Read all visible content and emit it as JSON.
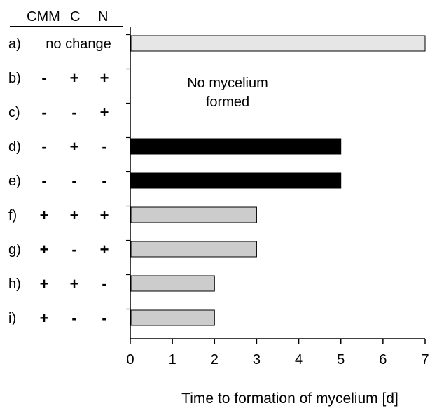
{
  "chart_data": {
    "type": "bar",
    "orientation": "horizontal",
    "xlabel": "Time to formation of mycelium [d]",
    "xlim": [
      0,
      7
    ],
    "xticks": [
      0,
      1,
      2,
      3,
      4,
      5,
      6,
      7
    ],
    "grid": false,
    "legend": "none",
    "column_headers": [
      "CMM",
      "C",
      "N"
    ],
    "rows": [
      {
        "label": "a)",
        "conditions_text": "no change",
        "conditions": [],
        "value": 7,
        "color": "#e6e6e6"
      },
      {
        "label": "b)",
        "conditions": [
          "-",
          "+",
          "+"
        ],
        "value": null,
        "color": null
      },
      {
        "label": "c)",
        "conditions": [
          "-",
          "-",
          "+"
        ],
        "value": null,
        "color": null
      },
      {
        "label": "d)",
        "conditions": [
          "-",
          "+",
          "-"
        ],
        "value": 5,
        "color": "#000000"
      },
      {
        "label": "e)",
        "conditions": [
          "-",
          "-",
          "-"
        ],
        "value": 5,
        "color": "#000000"
      },
      {
        "label": "f)",
        "conditions": [
          "+",
          "+",
          "+"
        ],
        "value": 3,
        "color": "#cccccc"
      },
      {
        "label": "g)",
        "conditions": [
          "+",
          "-",
          "+"
        ],
        "value": 3,
        "color": "#cccccc"
      },
      {
        "label": "h)",
        "conditions": [
          "+",
          "+",
          "-"
        ],
        "value": 2,
        "color": "#cccccc"
      },
      {
        "label": "i)",
        "conditions": [
          "+",
          "-",
          "-"
        ],
        "value": 2,
        "color": "#cccccc"
      }
    ],
    "annotation": {
      "line1": "No mycelium",
      "line2": "formed"
    }
  }
}
